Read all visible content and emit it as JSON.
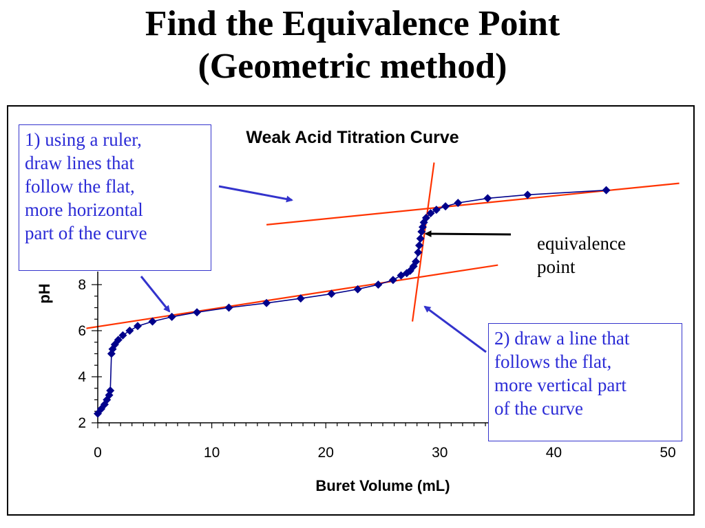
{
  "slide": {
    "title_lines": [
      "Find the Equivalence Point",
      "(Geometric method)"
    ]
  },
  "annotations": {
    "callout_1_lines": [
      "1) using a ruler,",
      "draw lines that",
      "follow the flat,",
      "more horizontal",
      "part of the curve"
    ],
    "callout_2_lines": [
      "2) draw a line that",
      "follows the flat,",
      "more vertical part",
      "of the curve"
    ],
    "equivalence_label_lines": [
      "equivalence",
      "point"
    ]
  },
  "colors": {
    "series": "#00008b",
    "construction_line": "#ff3300",
    "callout_text": "#2b2bd6",
    "callout_arrow": "#3333cc",
    "pointer_arrow": "#000000"
  },
  "chart_data": {
    "type": "scatter",
    "title": "Weak Acid Titration Curve",
    "xlabel": "Buret Volume (mL)",
    "ylabel": "pH",
    "xlim": [
      0,
      50
    ],
    "ylim": [
      2,
      14
    ],
    "x_ticks": [
      0,
      10,
      20,
      30,
      40,
      50
    ],
    "y_ticks_visible": [
      2,
      4,
      6,
      8
    ],
    "grid": false,
    "legend": "none",
    "series": [
      {
        "x": [
          0,
          0.3,
          0.6,
          0.8,
          1.0,
          1.1,
          1.2,
          1.3,
          1.5,
          1.8,
          2.2,
          2.8,
          3.5,
          4.8,
          6.5,
          8.7,
          11.5,
          14.8,
          17.8,
          20.5,
          22.8,
          24.6,
          25.9,
          26.6,
          27.1,
          27.4,
          27.7,
          27.9,
          28.1,
          28.2,
          28.3,
          28.4,
          28.5,
          28.6,
          28.8,
          29.2,
          29.7,
          30.5,
          31.6,
          34.2,
          37.7,
          44.6
        ],
        "y": [
          2.4,
          2.6,
          2.8,
          3.0,
          3.2,
          3.4,
          5.0,
          5.2,
          5.4,
          5.6,
          5.8,
          6.0,
          6.2,
          6.4,
          6.6,
          6.8,
          7.0,
          7.2,
          7.4,
          7.6,
          7.8,
          8.0,
          8.2,
          8.4,
          8.5,
          8.6,
          8.8,
          9.0,
          9.4,
          9.7,
          10.0,
          10.3,
          10.5,
          10.7,
          10.9,
          11.1,
          11.25,
          11.4,
          11.55,
          11.75,
          11.9,
          12.1
        ]
      }
    ],
    "construction_lines": [
      {
        "x": [
          -1.0,
          35.1
        ],
        "y": [
          6.1,
          8.85
        ]
      },
      {
        "x": [
          14.8,
          51.0
        ],
        "y": [
          10.6,
          12.4
        ]
      },
      {
        "x": [
          27.6,
          29.5
        ],
        "y": [
          6.4,
          13.3
        ]
      }
    ],
    "equivalence_point": {
      "x": 28.3,
      "y": 9.95
    }
  }
}
